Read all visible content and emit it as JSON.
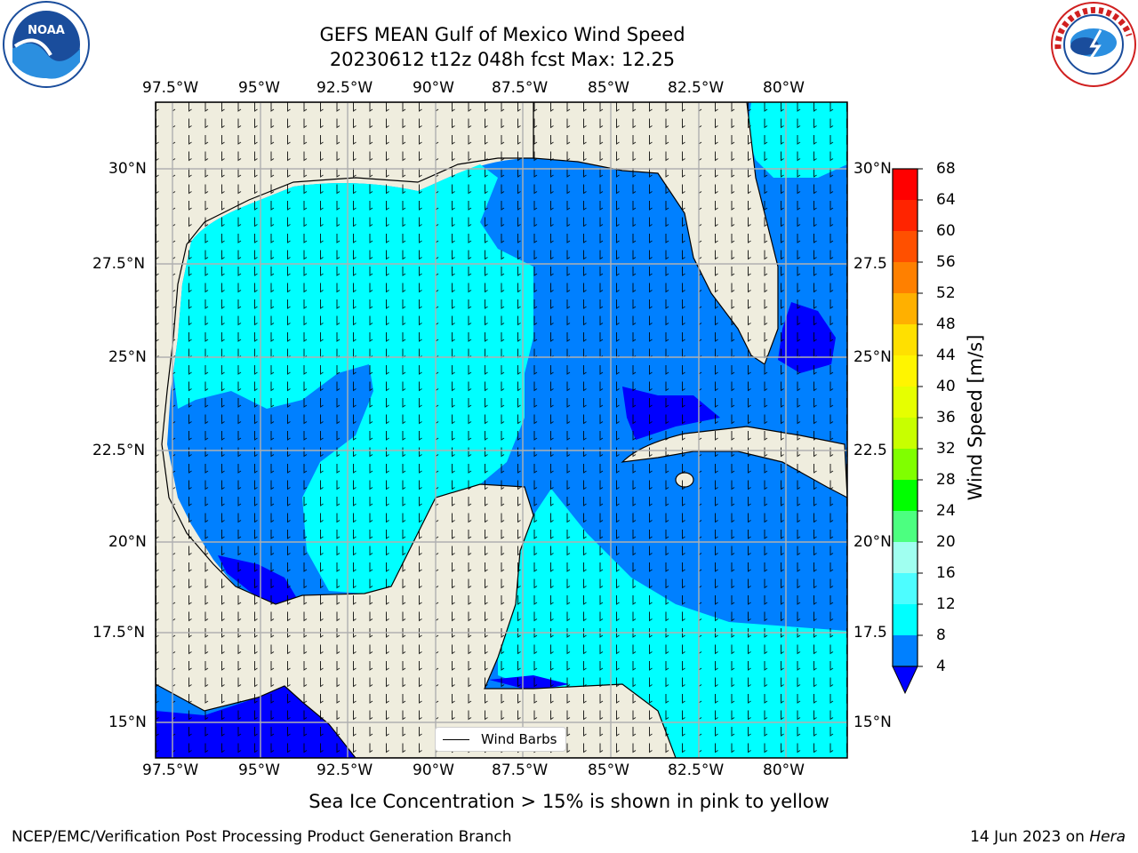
{
  "title": {
    "line1": "GEFS MEAN Gulf of Mexico Wind Speed",
    "line2": "20230612 t12z 048h fcst   Max: 12.25"
  },
  "map": {
    "lon_labels": [
      "97.5°W",
      "95°W",
      "92.5°W",
      "90°W",
      "87.5°W",
      "85°W",
      "82.5°W",
      "80°W"
    ],
    "lat_labels": [
      "30°N",
      "27.5°N",
      "25°N",
      "22.5°N",
      "20°N",
      "17.5°N",
      "15°N"
    ],
    "lat_labels_right": [
      "30°N",
      "27.5",
      "25°N",
      "22.5",
      "20°N",
      "17.5",
      "15°N"
    ],
    "land_color": "#efedde",
    "grid_color": "#b0b0b0",
    "wind_speed_field": "filled contours, 4–8 m/s blue (#0080ff) and 8–12 m/s cyan (#00ffff) dominate; < 4 m/s dark blue (#0000ff)"
  },
  "colorbar": {
    "title": "Wind Speed [m/s]",
    "labels": [
      "68",
      "64",
      "60",
      "56",
      "52",
      "48",
      "44",
      "40",
      "36",
      "32",
      "28",
      "24",
      "20",
      "16",
      "12",
      "8",
      "4"
    ],
    "colors": [
      "#ff0000",
      "#ff2400",
      "#ff4800",
      "#ff6a00",
      "#ff8c00",
      "#ffb000",
      "#ffd400",
      "#fff500",
      "#f0ff00",
      "#d8ff00",
      "#b8ff00",
      "#6edc00",
      "#00ff00",
      "#00e000",
      "#4cff80",
      "#a0fff0",
      "#4dfdff",
      "#00ffff",
      "#0080ff",
      "#0000ff"
    ]
  },
  "legend": {
    "label": "Wind Barbs"
  },
  "caption": "Sea Ice Concentration > 15% is shown in pink to yellow",
  "footer": {
    "left": "NCEP/EMC/Verification Post Processing Product Generation Branch",
    "right_date": "14 Jun 2023 on ",
    "right_host": "Hera"
  },
  "logos": {
    "left": "noaa-logo",
    "right": "nws-logo"
  }
}
